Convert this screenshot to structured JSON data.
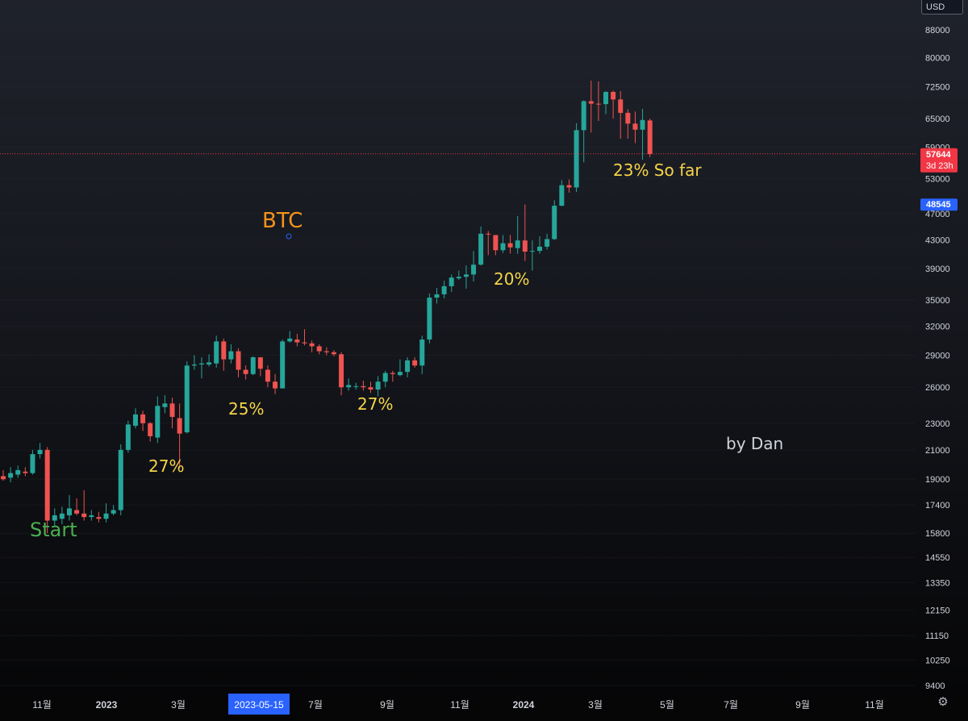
{
  "toolbar": {
    "currency": "USD"
  },
  "icons": {
    "settings": "gear-icon"
  },
  "colors": {
    "up": "#26a69a",
    "down": "#ef5350",
    "price_tag": "#f23645",
    "price_tag_blue": "#2962ff",
    "annotation_yellow": "#f5d547",
    "annotation_orange": "#f7931a",
    "annotation_green": "#4caf50",
    "annotation_white": "#d1d4dc"
  },
  "chart_data": {
    "type": "candlestick",
    "title": "BTC",
    "currency": "USD",
    "y_scale": "log",
    "ylim": [
      9000,
      95000
    ],
    "y_ticks": [
      88000,
      80000,
      72500,
      65000,
      59000,
      53000,
      47000,
      43000,
      39000,
      35000,
      32000,
      29000,
      26000,
      23000,
      21000,
      19000,
      17400,
      15800,
      14550,
      13350,
      12150,
      11150,
      10250,
      9400
    ],
    "x_tick_labels": [
      {
        "label": "11월",
        "bold": false
      },
      {
        "label": "2023",
        "bold": true
      },
      {
        "label": "3월",
        "bold": false
      },
      {
        "label": "2023-05-15",
        "bold": false,
        "highlight": true
      },
      {
        "label": "7월",
        "bold": false
      },
      {
        "label": "9월",
        "bold": false
      },
      {
        "label": "11월",
        "bold": false
      },
      {
        "label": "2024",
        "bold": true
      },
      {
        "label": "3월",
        "bold": false
      },
      {
        "label": "5월",
        "bold": false
      },
      {
        "label": "7월",
        "bold": false
      },
      {
        "label": "9월",
        "bold": false
      },
      {
        "label": "11월",
        "bold": false
      }
    ],
    "candles": [
      [
        19200,
        19000,
        19600,
        18900
      ],
      [
        19100,
        19400,
        19800,
        18800
      ],
      [
        19300,
        19600,
        19900,
        19100
      ],
      [
        19500,
        19400,
        19800,
        19200
      ],
      [
        19400,
        20700,
        21000,
        19300
      ],
      [
        20700,
        21000,
        21500,
        20400
      ],
      [
        21000,
        16500,
        21200,
        15800
      ],
      [
        16500,
        16800,
        17200,
        16200
      ],
      [
        16600,
        16900,
        17300,
        16300
      ],
      [
        16800,
        17200,
        18000,
        16500
      ],
      [
        17100,
        16900,
        17800,
        16800
      ],
      [
        16900,
        16700,
        18300,
        16500
      ],
      [
        16700,
        16800,
        17100,
        16500
      ],
      [
        16700,
        16600,
        17000,
        16400
      ],
      [
        16600,
        16900,
        17500,
        16400
      ],
      [
        16900,
        17100,
        17400,
        16800
      ],
      [
        17100,
        21000,
        21400,
        16800
      ],
      [
        21000,
        22900,
        23200,
        20800
      ],
      [
        22800,
        23700,
        24200,
        22600
      ],
      [
        23700,
        23000,
        24000,
        22400
      ],
      [
        23000,
        22000,
        23100,
        21600
      ],
      [
        21900,
        24400,
        25200,
        21500
      ],
      [
        24300,
        24600,
        25300,
        23800
      ],
      [
        24600,
        23500,
        25100,
        22600
      ],
      [
        23400,
        22200,
        24600,
        19700
      ],
      [
        22300,
        28000,
        28400,
        22200
      ],
      [
        28000,
        28100,
        29000,
        27600
      ],
      [
        28100,
        28200,
        28800,
        26800
      ],
      [
        28100,
        28300,
        29100,
        27900
      ],
      [
        28200,
        30400,
        31000,
        27800
      ],
      [
        30400,
        28600,
        30700,
        27500
      ],
      [
        28600,
        29400,
        30100,
        28200
      ],
      [
        29400,
        27600,
        29700,
        26900
      ],
      [
        27600,
        27200,
        28000,
        26700
      ],
      [
        27200,
        28800,
        28900,
        27100
      ],
      [
        28800,
        27700,
        28800,
        27000
      ],
      [
        27600,
        26500,
        28000,
        26000
      ],
      [
        26500,
        25900,
        27200,
        25400
      ],
      [
        25900,
        30400,
        30600,
        25900
      ],
      [
        30400,
        30700,
        31500,
        30300
      ],
      [
        30600,
        30300,
        31200,
        29900
      ],
      [
        30300,
        30200,
        31700,
        30000
      ],
      [
        30200,
        29900,
        30500,
        29300
      ],
      [
        29900,
        29400,
        30100,
        29100
      ],
      [
        29400,
        29300,
        29800,
        29000
      ],
      [
        29300,
        29100,
        29500,
        28900
      ],
      [
        29100,
        26000,
        29300,
        25300
      ],
      [
        26000,
        26200,
        26800,
        25700
      ],
      [
        26100,
        26100,
        26400,
        25800
      ],
      [
        26100,
        26000,
        26600,
        25700
      ],
      [
        26000,
        25800,
        26500,
        25500
      ],
      [
        25800,
        26500,
        27000,
        25200
      ],
      [
        26500,
        27300,
        27500,
        26000
      ],
      [
        27300,
        27200,
        27500,
        26500
      ],
      [
        27100,
        27400,
        28600,
        27000
      ],
      [
        27400,
        28500,
        28800,
        26900
      ],
      [
        28500,
        28000,
        28800,
        27800
      ],
      [
        28000,
        30600,
        31000,
        27200
      ],
      [
        30600,
        35300,
        35800,
        30200
      ],
      [
        35300,
        35700,
        36500,
        34600
      ],
      [
        35700,
        36700,
        37400,
        35200
      ],
      [
        36700,
        37800,
        38200,
        36000
      ],
      [
        37700,
        37900,
        38700,
        37500
      ],
      [
        37900,
        38200,
        39400,
        36400
      ],
      [
        38200,
        39500,
        41400,
        37300
      ],
      [
        39500,
        43900,
        45000,
        39400
      ],
      [
        43900,
        43800,
        44300,
        40800
      ],
      [
        43700,
        41500,
        43700,
        40800
      ],
      [
        41500,
        42500,
        43700,
        41100
      ],
      [
        42500,
        41900,
        43700,
        41000
      ],
      [
        41800,
        42900,
        46600,
        41000
      ],
      [
        42900,
        41300,
        48500,
        40000
      ],
      [
        41300,
        41400,
        42900,
        38700
      ],
      [
        41400,
        42000,
        43500,
        41000
      ],
      [
        42000,
        43100,
        43900,
        41600
      ],
      [
        43100,
        48300,
        49200,
        43000
      ],
      [
        48300,
        51800,
        52700,
        48200
      ],
      [
        51800,
        51400,
        52800,
        50500
      ],
      [
        51400,
        62500,
        64000,
        50600
      ],
      [
        62500,
        69000,
        69200,
        56000
      ],
      [
        69000,
        68400,
        74000,
        62000
      ],
      [
        68400,
        68300,
        73800,
        64500
      ],
      [
        68300,
        71200,
        71400,
        66000
      ],
      [
        71200,
        69400,
        71500,
        65000
      ],
      [
        69400,
        66300,
        71400,
        60700
      ],
      [
        66300,
        63900,
        67100,
        60700
      ],
      [
        63900,
        62600,
        66600,
        59800
      ],
      [
        62600,
        64700,
        67200,
        56500
      ],
      [
        64600,
        57600,
        65000,
        57000
      ]
    ],
    "price_labels": [
      {
        "value": 57644,
        "text": "57644",
        "countdown": "3d 23h",
        "type": "last"
      },
      {
        "value": 48545,
        "text": "48545",
        "type": "marker"
      }
    ],
    "annotations": [
      {
        "text": "Start",
        "color": "annotation_green"
      },
      {
        "text": "27%",
        "color": "annotation_yellow"
      },
      {
        "text": "25%",
        "color": "annotation_yellow"
      },
      {
        "text": "27%",
        "color": "annotation_yellow"
      },
      {
        "text": "20%",
        "color": "annotation_yellow"
      },
      {
        "text": "23% So far",
        "color": "annotation_yellow"
      },
      {
        "text": "BTC",
        "color": "annotation_orange"
      },
      {
        "text": "by Dan",
        "color": "annotation_white"
      }
    ]
  }
}
